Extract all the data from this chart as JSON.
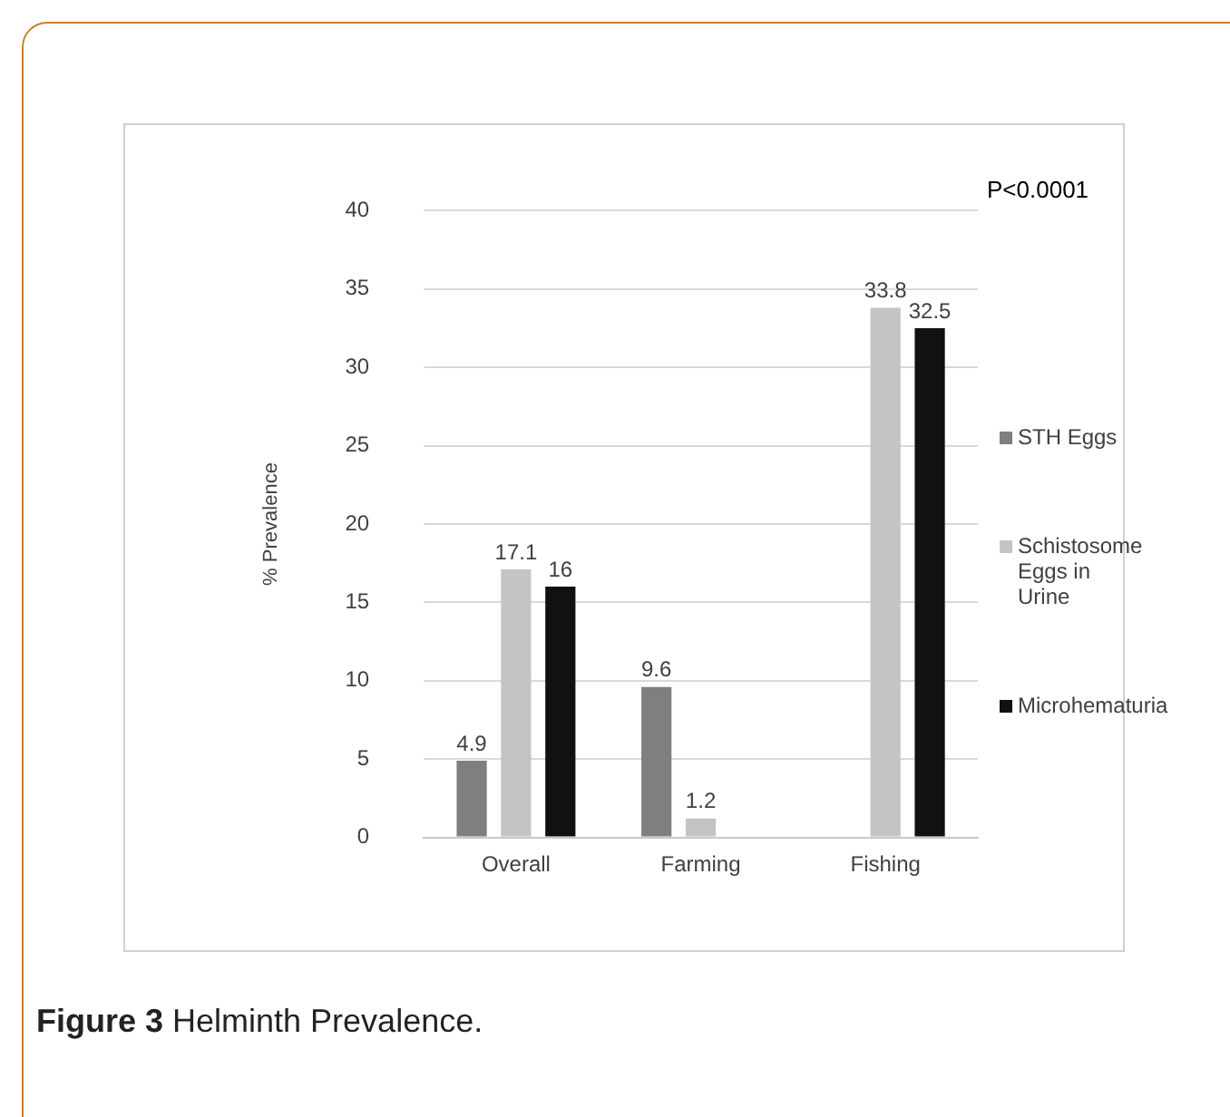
{
  "chart_data": {
    "type": "bar",
    "ylabel": "% Prevalence",
    "categories": [
      "Overall",
      "Farming",
      "Fishing"
    ],
    "series": [
      {
        "name": "STH Eggs",
        "color": "#7f7f7f",
        "values": [
          4.9,
          9.6,
          null
        ]
      },
      {
        "name": "Schistosome Eggs in Urine",
        "color": "#c4c4c4",
        "values": [
          17.1,
          1.2,
          33.8
        ]
      },
      {
        "name": "Microhematuria",
        "color": "#111111",
        "values": [
          16,
          null,
          32.5
        ]
      }
    ],
    "ylim": [
      0,
      40
    ],
    "yticks": [
      0,
      5,
      10,
      15,
      20,
      25,
      30,
      35,
      40
    ],
    "grid": "y",
    "legend": "right",
    "data_labels": true,
    "annotations": [
      "P<0.0001",
      "Figure 3",
      "Helminth Prevalence."
    ]
  }
}
